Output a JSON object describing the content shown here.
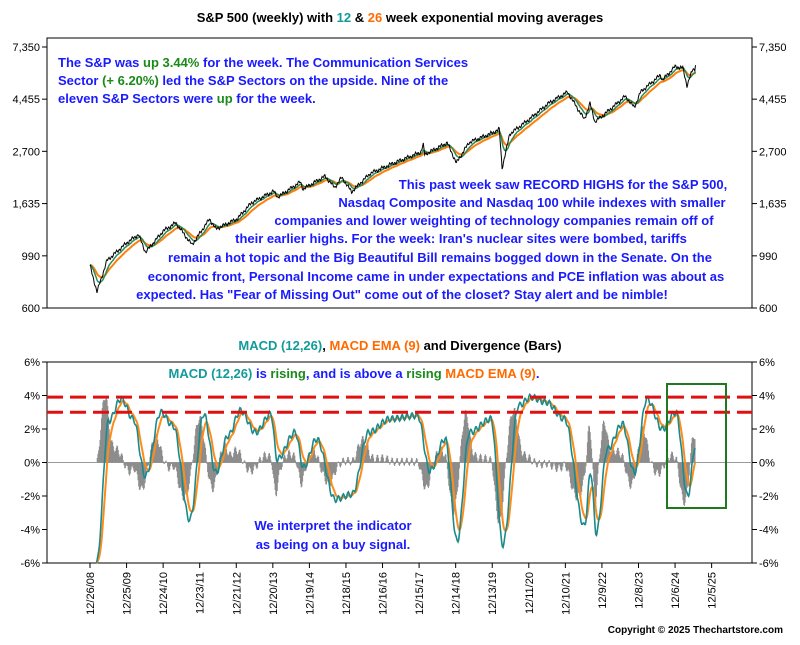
{
  "top_title": {
    "prefix": "S&P 500 (weekly) with ",
    "n12": "12",
    "amp": " & ",
    "n26": "26",
    "suffix": " week exponential moving averages"
  },
  "top_note": {
    "l1a": "The S&P was ",
    "l1b": "up 3.44%",
    "l1c": " for the week. The Communication Services",
    "l2a": "Sector ",
    "l2b": "(+ 6.20%)",
    "l2c": " led the S&P Sectors on the upside.  Nine of the",
    "l3a": "eleven S&P Sectors were ",
    "l3b": "up",
    "l3c": " for the week."
  },
  "commentary": [
    "This past week saw RECORD HIGHS for the S&P 500,",
    "Nasdaq Composite and Nasdaq 100 while indexes with smaller",
    "companies and lower weighting of technology companies remain off of",
    "their earlier highs.  For the week: Iran's nuclear sites were bombed, tariffs",
    "remain a hot topic and the Big Beautiful Bill remains bogged down in the Senate.  On the",
    "economic front, Personal Income came in under expectations and PCE inflation was about as",
    "expected.  Has \"Fear of Missing Out\" come out of the closet?  Stay alert and be nimble!"
  ],
  "macd_title": {
    "a": "MACD (12,26)",
    "b": ", ",
    "c": "MACD EMA (9)",
    "d": " and Divergence (Bars)"
  },
  "macd_note": {
    "a": "MACD (12,26)",
    "b": " is ",
    "c": "rising",
    "d": ", and is above a ",
    "e": "rising",
    "f": " ",
    "g": "MACD EMA (9)",
    "h": "."
  },
  "signal_note": [
    "We interpret the indicator",
    "as being on a buy signal."
  ],
  "copyright": "Copyright © 2025 Thechartstore.com",
  "colors": {
    "price": "#000000",
    "ema12": "#2e8b57",
    "ema26": "#ff7f0e",
    "macd": "#1b8a8a",
    "macd_ema": "#ff8c1a",
    "hist": "#8c8c8c",
    "ref_line": "#e01010",
    "box": "#1f7a1f",
    "note_blue": "#1a1aff",
    "green": "#1a8a1a",
    "title_teal": "#139a9a",
    "title_orange": "#ff6a00"
  },
  "chart_data": [
    {
      "type": "line",
      "title": "S&P 500 (weekly) with 12 & 26 week exponential moving averages",
      "y_scale": "log",
      "yticks": [
        7350,
        4455,
        2700,
        1635,
        990,
        600
      ],
      "ytick_labels": [
        "7,350",
        "4,455",
        "2,700",
        "1,635",
        "990",
        "600"
      ],
      "ylim": [
        600,
        7350
      ],
      "x_range": [
        "2008-12-26",
        "2025-06-27"
      ],
      "series": [
        {
          "name": "S&P 500",
          "points": [
            [
              "2008-12-26",
              900
            ],
            [
              "2009-03-06",
              700
            ],
            [
              "2009-06-12",
              945
            ],
            [
              "2009-12-25",
              1120
            ],
            [
              "2010-04-23",
              1215
            ],
            [
              "2010-07-02",
              1025
            ],
            [
              "2010-12-24",
              1256
            ],
            [
              "2011-04-29",
              1360
            ],
            [
              "2011-10-07",
              1100
            ],
            [
              "2012-03-30",
              1410
            ],
            [
              "2012-06-01",
              1280
            ],
            [
              "2012-12-28",
              1410
            ],
            [
              "2013-05-24",
              1650
            ],
            [
              "2013-12-27",
              1840
            ],
            [
              "2014-02-07",
              1740
            ],
            [
              "2014-09-19",
              2010
            ],
            [
              "2014-10-17",
              1880
            ],
            [
              "2015-05-22",
              2125
            ],
            [
              "2015-08-28",
              1910
            ],
            [
              "2015-11-06",
              2100
            ],
            [
              "2016-02-12",
              1830
            ],
            [
              "2016-08-12",
              2180
            ],
            [
              "2017-03-03",
              2380
            ],
            [
              "2017-12-29",
              2675
            ],
            [
              "2018-01-26",
              2870
            ],
            [
              "2018-02-09",
              2620
            ],
            [
              "2018-09-21",
              2930
            ],
            [
              "2018-12-21",
              2415
            ],
            [
              "2019-04-26",
              2940
            ],
            [
              "2019-12-27",
              3240
            ],
            [
              "2020-02-21",
              3340
            ],
            [
              "2020-03-20",
              2300
            ],
            [
              "2020-06-05",
              3190
            ],
            [
              "2020-12-25",
              3700
            ],
            [
              "2021-06-25",
              4280
            ],
            [
              "2021-12-31",
              4770
            ],
            [
              "2022-06-17",
              3670
            ],
            [
              "2022-08-12",
              4280
            ],
            [
              "2022-09-30",
              3585
            ],
            [
              "2022-12-30",
              3840
            ],
            [
              "2023-07-28",
              4580
            ],
            [
              "2023-10-27",
              4115
            ],
            [
              "2023-12-29",
              4770
            ],
            [
              "2024-07-12",
              5615
            ],
            [
              "2024-08-02",
              5345
            ],
            [
              "2024-12-06",
              6090
            ],
            [
              "2025-02-21",
              6013
            ],
            [
              "2025-04-04",
              5075
            ],
            [
              "2025-05-30",
              5910
            ],
            [
              "2025-06-20",
              5970
            ],
            [
              "2025-06-27",
              6173
            ]
          ]
        },
        {
          "name": "12 week EMA"
        },
        {
          "name": "26 week EMA"
        }
      ]
    },
    {
      "type": "line",
      "title": "MACD (12,26), MACD EMA (9) and Divergence (Bars)",
      "yticks": [
        6,
        4,
        2,
        0,
        -2,
        -4,
        -6
      ],
      "ytick_labels": [
        "6%",
        "4%",
        "2%",
        "0%",
        "-2%",
        "-4%",
        "-6%"
      ],
      "ylim": [
        -6,
        6
      ],
      "reference_lines": [
        3.9,
        3.0
      ],
      "series": [
        {
          "name": "MACD (12,26)",
          "points": [
            [
              "2009-03-01",
              -6
            ],
            [
              "2009-07-01",
              2.5
            ],
            [
              "2009-11-01",
              3.8
            ],
            [
              "2010-03-01",
              2.6
            ],
            [
              "2010-07-01",
              -0.8
            ],
            [
              "2010-12-01",
              3.0
            ],
            [
              "2011-04-01",
              2.2
            ],
            [
              "2011-09-15",
              -3.4
            ],
            [
              "2012-02-01",
              2.9
            ],
            [
              "2012-06-01",
              -0.6
            ],
            [
              "2012-10-01",
              1.6
            ],
            [
              "2013-02-01",
              3.1
            ],
            [
              "2013-07-01",
              1.8
            ],
            [
              "2013-12-01",
              2.9
            ],
            [
              "2014-02-01",
              0.2
            ],
            [
              "2014-08-01",
              1.8
            ],
            [
              "2014-10-20",
              -0.3
            ],
            [
              "2015-03-01",
              1.4
            ],
            [
              "2015-09-01",
              -2.2
            ],
            [
              "2016-02-15",
              -1.9
            ],
            [
              "2016-08-01",
              1.8
            ],
            [
              "2017-03-01",
              2.6
            ],
            [
              "2017-12-01",
              2.8
            ],
            [
              "2018-04-01",
              -0.5
            ],
            [
              "2018-09-01",
              1.4
            ],
            [
              "2018-12-28",
              -4.7
            ],
            [
              "2019-05-01",
              1.8
            ],
            [
              "2019-12-01",
              2.6
            ],
            [
              "2020-03-27",
              -4.9
            ],
            [
              "2020-09-01",
              3.4
            ],
            [
              "2021-01-01",
              3.9
            ],
            [
              "2021-06-01",
              3.6
            ],
            [
              "2021-12-01",
              2.6
            ],
            [
              "2022-06-17",
              -3.8
            ],
            [
              "2022-08-19",
              -0.6
            ],
            [
              "2022-10-14",
              -4.2
            ],
            [
              "2023-02-01",
              0.8
            ],
            [
              "2023-07-01",
              2.3
            ],
            [
              "2023-10-27",
              -0.6
            ],
            [
              "2024-03-01",
              3.8
            ],
            [
              "2024-08-02",
              2.0
            ],
            [
              "2024-12-13",
              3.0
            ],
            [
              "2025-04-11",
              -2.0
            ],
            [
              "2025-06-27",
              1.0
            ]
          ]
        },
        {
          "name": "MACD EMA (9)"
        },
        {
          "name": "Divergence (Bars)"
        }
      ]
    }
  ],
  "x_axis": {
    "ticks": [
      "12/26/08",
      "12/25/09",
      "12/24/10",
      "12/23/11",
      "12/21/12",
      "12/20/13",
      "12/19/14",
      "12/18/15",
      "12/16/16",
      "12/15/17",
      "12/14/18",
      "12/13/19",
      "12/11/20",
      "12/10/21",
      "12/9/22",
      "12/8/23",
      "12/6/24",
      "12/5/25"
    ]
  }
}
